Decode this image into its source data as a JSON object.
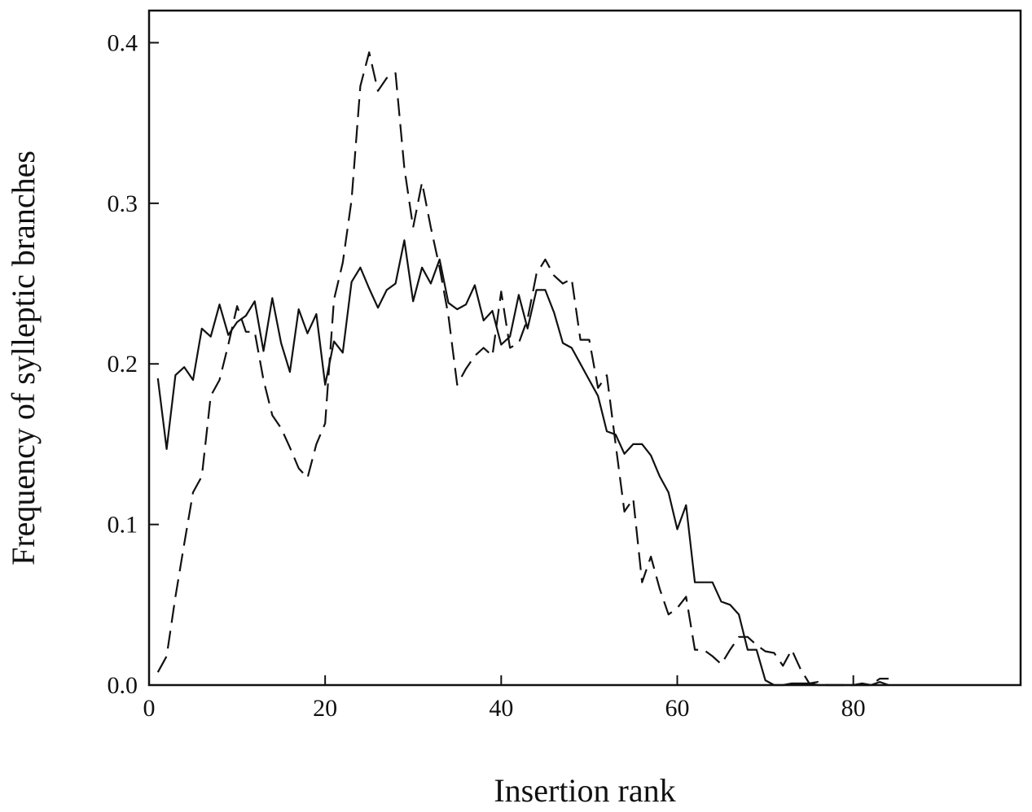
{
  "chart_data": {
    "type": "line",
    "title": "",
    "xlabel": "Insertion rank",
    "ylabel": "Frequency of sylleptic branches",
    "xlim": [
      0,
      99
    ],
    "ylim": [
      0,
      0.42
    ],
    "xticks": [
      0,
      20,
      40,
      60,
      80
    ],
    "xtick_labels": [
      "0",
      "20",
      "40",
      "60",
      "80"
    ],
    "yticks": [
      0,
      0.1,
      0.2,
      0.3,
      0.4
    ],
    "ytick_labels": [
      "0.0",
      "0.1",
      "0.2",
      "0.3",
      "0.4"
    ],
    "grid": false,
    "legend": "none",
    "series": [
      {
        "style": "solid",
        "x": [
          1,
          2,
          3,
          4,
          5,
          6,
          7,
          8,
          9,
          10,
          11,
          12,
          13,
          14,
          15,
          16,
          17,
          18,
          19,
          20,
          21,
          22,
          23,
          24,
          25,
          26,
          27,
          28,
          29,
          30,
          31,
          32,
          33,
          34,
          35,
          36,
          37,
          38,
          39,
          40,
          41,
          42,
          43,
          44,
          45,
          46,
          47,
          48,
          49,
          50,
          51,
          52,
          53,
          54,
          55,
          56,
          57,
          58,
          59,
          60,
          61,
          62,
          63,
          64,
          65,
          66,
          67,
          68,
          69,
          70,
          71,
          72,
          73,
          74,
          75,
          76,
          77,
          78,
          79,
          80,
          81,
          82,
          83,
          84
        ],
        "y": [
          0.191,
          0.147,
          0.193,
          0.198,
          0.19,
          0.222,
          0.217,
          0.237,
          0.218,
          0.226,
          0.23,
          0.239,
          0.208,
          0.241,
          0.213,
          0.195,
          0.234,
          0.219,
          0.231,
          0.187,
          0.214,
          0.207,
          0.251,
          0.26,
          0.247,
          0.235,
          0.246,
          0.25,
          0.277,
          0.239,
          0.26,
          0.25,
          0.265,
          0.238,
          0.234,
          0.237,
          0.249,
          0.227,
          0.233,
          0.212,
          0.217,
          0.243,
          0.222,
          0.246,
          0.246,
          0.232,
          0.213,
          0.21,
          0.2,
          0.19,
          0.18,
          0.158,
          0.156,
          0.144,
          0.15,
          0.15,
          0.143,
          0.13,
          0.12,
          0.097,
          0.112,
          0.064,
          0.064,
          0.064,
          0.052,
          0.05,
          0.044,
          0.022,
          0.022,
          0.003,
          0.0,
          0.0,
          0.001,
          0.001,
          0.001,
          0.0,
          0.0,
          0.0,
          0.0,
          0.0,
          0.001,
          0.0,
          0.002,
          0.0
        ]
      },
      {
        "style": "dashed",
        "x": [
          1,
          2,
          3,
          4,
          5,
          6,
          7,
          8,
          9,
          10,
          11,
          12,
          13,
          14,
          15,
          16,
          17,
          18,
          19,
          20,
          21,
          22,
          23,
          24,
          25,
          26,
          27,
          28,
          29,
          30,
          31,
          32,
          33,
          34,
          35,
          36,
          37,
          38,
          39,
          40,
          41,
          42,
          43,
          44,
          45,
          46,
          47,
          48,
          49,
          50,
          51,
          52,
          53,
          54,
          55,
          56,
          57,
          58,
          59,
          60,
          61,
          62,
          63,
          64,
          65,
          66,
          67,
          68,
          69,
          70,
          71,
          72,
          73,
          74,
          75,
          76,
          77,
          78,
          79,
          80,
          81,
          82,
          83,
          84
        ],
        "y": [
          0.008,
          0.018,
          0.055,
          0.088,
          0.12,
          0.13,
          0.18,
          0.19,
          0.212,
          0.236,
          0.22,
          0.22,
          0.19,
          0.168,
          0.16,
          0.148,
          0.135,
          0.129,
          0.15,
          0.163,
          0.24,
          0.263,
          0.302,
          0.373,
          0.394,
          0.37,
          0.378,
          0.381,
          0.322,
          0.285,
          0.313,
          0.285,
          0.26,
          0.23,
          0.187,
          0.197,
          0.205,
          0.21,
          0.205,
          0.245,
          0.21,
          0.213,
          0.228,
          0.256,
          0.265,
          0.255,
          0.25,
          0.253,
          0.215,
          0.215,
          0.185,
          0.193,
          0.15,
          0.108,
          0.116,
          0.064,
          0.08,
          0.06,
          0.044,
          0.048,
          0.055,
          0.022,
          0.022,
          0.018,
          0.013,
          0.022,
          0.03,
          0.03,
          0.025,
          0.021,
          0.02,
          0.012,
          0.022,
          0.01,
          0.001,
          0.002,
          0.0,
          0.0,
          0.0,
          0.0,
          0.0,
          0.0,
          0.004,
          0.004
        ]
      }
    ]
  }
}
